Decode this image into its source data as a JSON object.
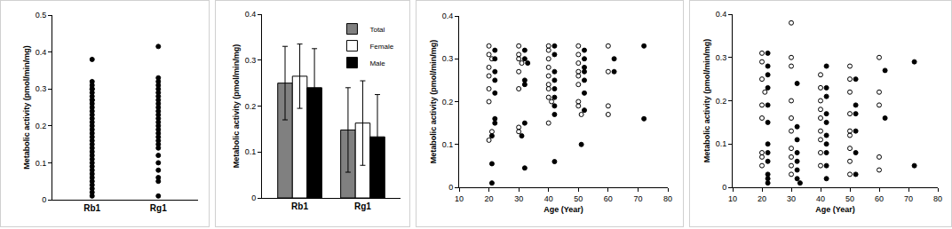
{
  "chart_data": [
    {
      "type": "strip",
      "y_label": "Metabolic activity (pmol/min/mg)",
      "categories": [
        "Rb1",
        "Rg1"
      ],
      "values": [
        [
          0.38,
          0.32,
          0.31,
          0.3,
          0.3,
          0.29,
          0.28,
          0.27,
          0.27,
          0.26,
          0.25,
          0.24,
          0.23,
          0.22,
          0.21,
          0.2,
          0.19,
          0.18,
          0.17,
          0.16,
          0.15,
          0.14,
          0.13,
          0.12,
          0.11,
          0.1,
          0.09,
          0.08,
          0.07,
          0.06,
          0.05,
          0.04,
          0.03,
          0.02,
          0.01
        ],
        [
          0.415,
          0.33,
          0.32,
          0.31,
          0.3,
          0.29,
          0.28,
          0.27,
          0.26,
          0.25,
          0.24,
          0.23,
          0.22,
          0.21,
          0.2,
          0.19,
          0.18,
          0.17,
          0.16,
          0.15,
          0.14,
          0.12,
          0.1,
          0.08,
          0.06,
          0.05,
          0.01
        ]
      ],
      "color": "#000000",
      "marker": "filled",
      "ylim": [
        0,
        0.5
      ],
      "yticks": [
        0,
        0.1,
        0.2,
        0.3,
        0.4,
        0.5
      ],
      "grid": false
    },
    {
      "type": "bar",
      "y_label": "Metabolic activity (pmol/min/mg)",
      "categories": [
        "Rb1",
        "Rg1"
      ],
      "series": [
        {
          "name": "Total",
          "color": "#808080",
          "values": [
            0.25,
            0.148
          ],
          "errors": [
            0.08,
            0.092
          ]
        },
        {
          "name": "Female",
          "color": "#ffffff",
          "values": [
            0.265,
            0.163
          ],
          "errors": [
            0.07,
            0.092
          ]
        },
        {
          "name": "Male",
          "color": "#000000",
          "values": [
            0.24,
            0.133
          ],
          "errors": [
            0.085,
            0.092
          ]
        }
      ],
      "ylim": [
        0,
        0.4
      ],
      "yticks": [
        0,
        0.1,
        0.2,
        0.3,
        0.4
      ],
      "grid": false,
      "legend": "top right"
    },
    {
      "type": "scatter",
      "x_label": "Age (Year)",
      "y_label": "Metabolic activity (pmol/min/mg)",
      "series": [
        {
          "marker": "open",
          "color": "#000000",
          "x": [
            20,
            20,
            21,
            20,
            20,
            20,
            20,
            20,
            21,
            30,
            30,
            30,
            31,
            30,
            30,
            30,
            30,
            40,
            40,
            40,
            40,
            40,
            40,
            40,
            40,
            41,
            40,
            50,
            50,
            50,
            50,
            50,
            50,
            50,
            50,
            51,
            60,
            60,
            60,
            60
          ],
          "y": [
            0.31,
            0.33,
            0.3,
            0.28,
            0.26,
            0.23,
            0.2,
            0.11,
            0.13,
            0.33,
            0.31,
            0.3,
            0.29,
            0.27,
            0.23,
            0.14,
            0.13,
            0.33,
            0.32,
            0.3,
            0.28,
            0.26,
            0.24,
            0.23,
            0.21,
            0.2,
            0.15,
            0.33,
            0.31,
            0.29,
            0.27,
            0.26,
            0.24,
            0.2,
            0.19,
            0.17,
            0.33,
            0.27,
            0.19,
            0.17
          ]
        },
        {
          "marker": "filled",
          "color": "#000000",
          "x": [
            22,
            22,
            22,
            22,
            22,
            22,
            22,
            21,
            21,
            21,
            32,
            32,
            33,
            32,
            32,
            32,
            32,
            31,
            42,
            42,
            42,
            42,
            42,
            42,
            42,
            42,
            42,
            52,
            52,
            52,
            52,
            52,
            52,
            52,
            51,
            62,
            62,
            72,
            72
          ],
          "y": [
            0.32,
            0.3,
            0.27,
            0.25,
            0.22,
            0.16,
            0.15,
            0.12,
            0.055,
            0.01,
            0.32,
            0.3,
            0.29,
            0.25,
            0.24,
            0.15,
            0.045,
            0.12,
            0.33,
            0.31,
            0.27,
            0.25,
            0.23,
            0.21,
            0.19,
            0.17,
            0.06,
            0.32,
            0.3,
            0.28,
            0.27,
            0.25,
            0.22,
            0.18,
            0.1,
            0.3,
            0.27,
            0.33,
            0.16
          ]
        }
      ],
      "xlim": [
        10,
        80
      ],
      "xticks": [
        10,
        20,
        30,
        40,
        50,
        60,
        70,
        80
      ],
      "ylim": [
        0,
        0.4
      ],
      "yticks": [
        0,
        0.1,
        0.2,
        0.3,
        0.4
      ],
      "grid": false
    },
    {
      "type": "scatter",
      "x_label": "Age (Year)",
      "y_label": "Metabolic activity (pmol/min/mg)",
      "series": [
        {
          "marker": "open",
          "color": "#000000",
          "x": [
            20,
            20,
            20,
            21,
            20,
            20,
            20,
            20,
            20,
            30,
            30,
            30,
            30,
            30,
            30,
            30,
            30,
            30,
            30,
            40,
            40,
            40,
            40,
            40,
            40,
            40,
            40,
            40,
            50,
            50,
            50,
            50,
            50,
            50,
            50,
            50,
            50,
            60,
            60,
            60,
            60,
            60
          ],
          "y": [
            0.31,
            0.29,
            0.25,
            0.22,
            0.19,
            0.16,
            0.08,
            0.07,
            0.05,
            0.38,
            0.3,
            0.28,
            0.2,
            0.16,
            0.13,
            0.09,
            0.07,
            0.05,
            0.03,
            0.26,
            0.23,
            0.2,
            0.18,
            0.16,
            0.13,
            0.11,
            0.08,
            0.05,
            0.28,
            0.25,
            0.22,
            0.17,
            0.13,
            0.12,
            0.09,
            0.06,
            0.03,
            0.3,
            0.22,
            0.19,
            0.07,
            0.04
          ]
        },
        {
          "marker": "filled",
          "color": "#000000",
          "x": [
            22,
            22,
            22,
            22,
            22,
            22,
            22,
            22,
            22,
            22,
            22,
            22,
            32,
            32,
            32,
            32,
            32,
            32,
            32,
            33,
            42,
            42,
            42,
            42,
            42,
            42,
            42,
            42,
            42,
            42,
            52,
            52,
            52,
            52,
            52,
            52,
            62,
            62,
            72,
            72
          ],
          "y": [
            0.31,
            0.28,
            0.26,
            0.23,
            0.19,
            0.15,
            0.1,
            0.08,
            0.06,
            0.03,
            0.02,
            0.01,
            0.24,
            0.14,
            0.11,
            0.08,
            0.06,
            0.04,
            0.02,
            0.01,
            0.28,
            0.23,
            0.21,
            0.17,
            0.15,
            0.12,
            0.1,
            0.08,
            0.05,
            0.02,
            0.25,
            0.19,
            0.17,
            0.13,
            0.08,
            0.03,
            0.27,
            0.16,
            0.29,
            0.05
          ]
        }
      ],
      "xlim": [
        10,
        80
      ],
      "xticks": [
        10,
        20,
        30,
        40,
        50,
        60,
        70,
        80
      ],
      "ylim": [
        0,
        0.4
      ],
      "yticks": [
        0,
        0.1,
        0.2,
        0.3,
        0.4
      ],
      "grid": false
    }
  ]
}
